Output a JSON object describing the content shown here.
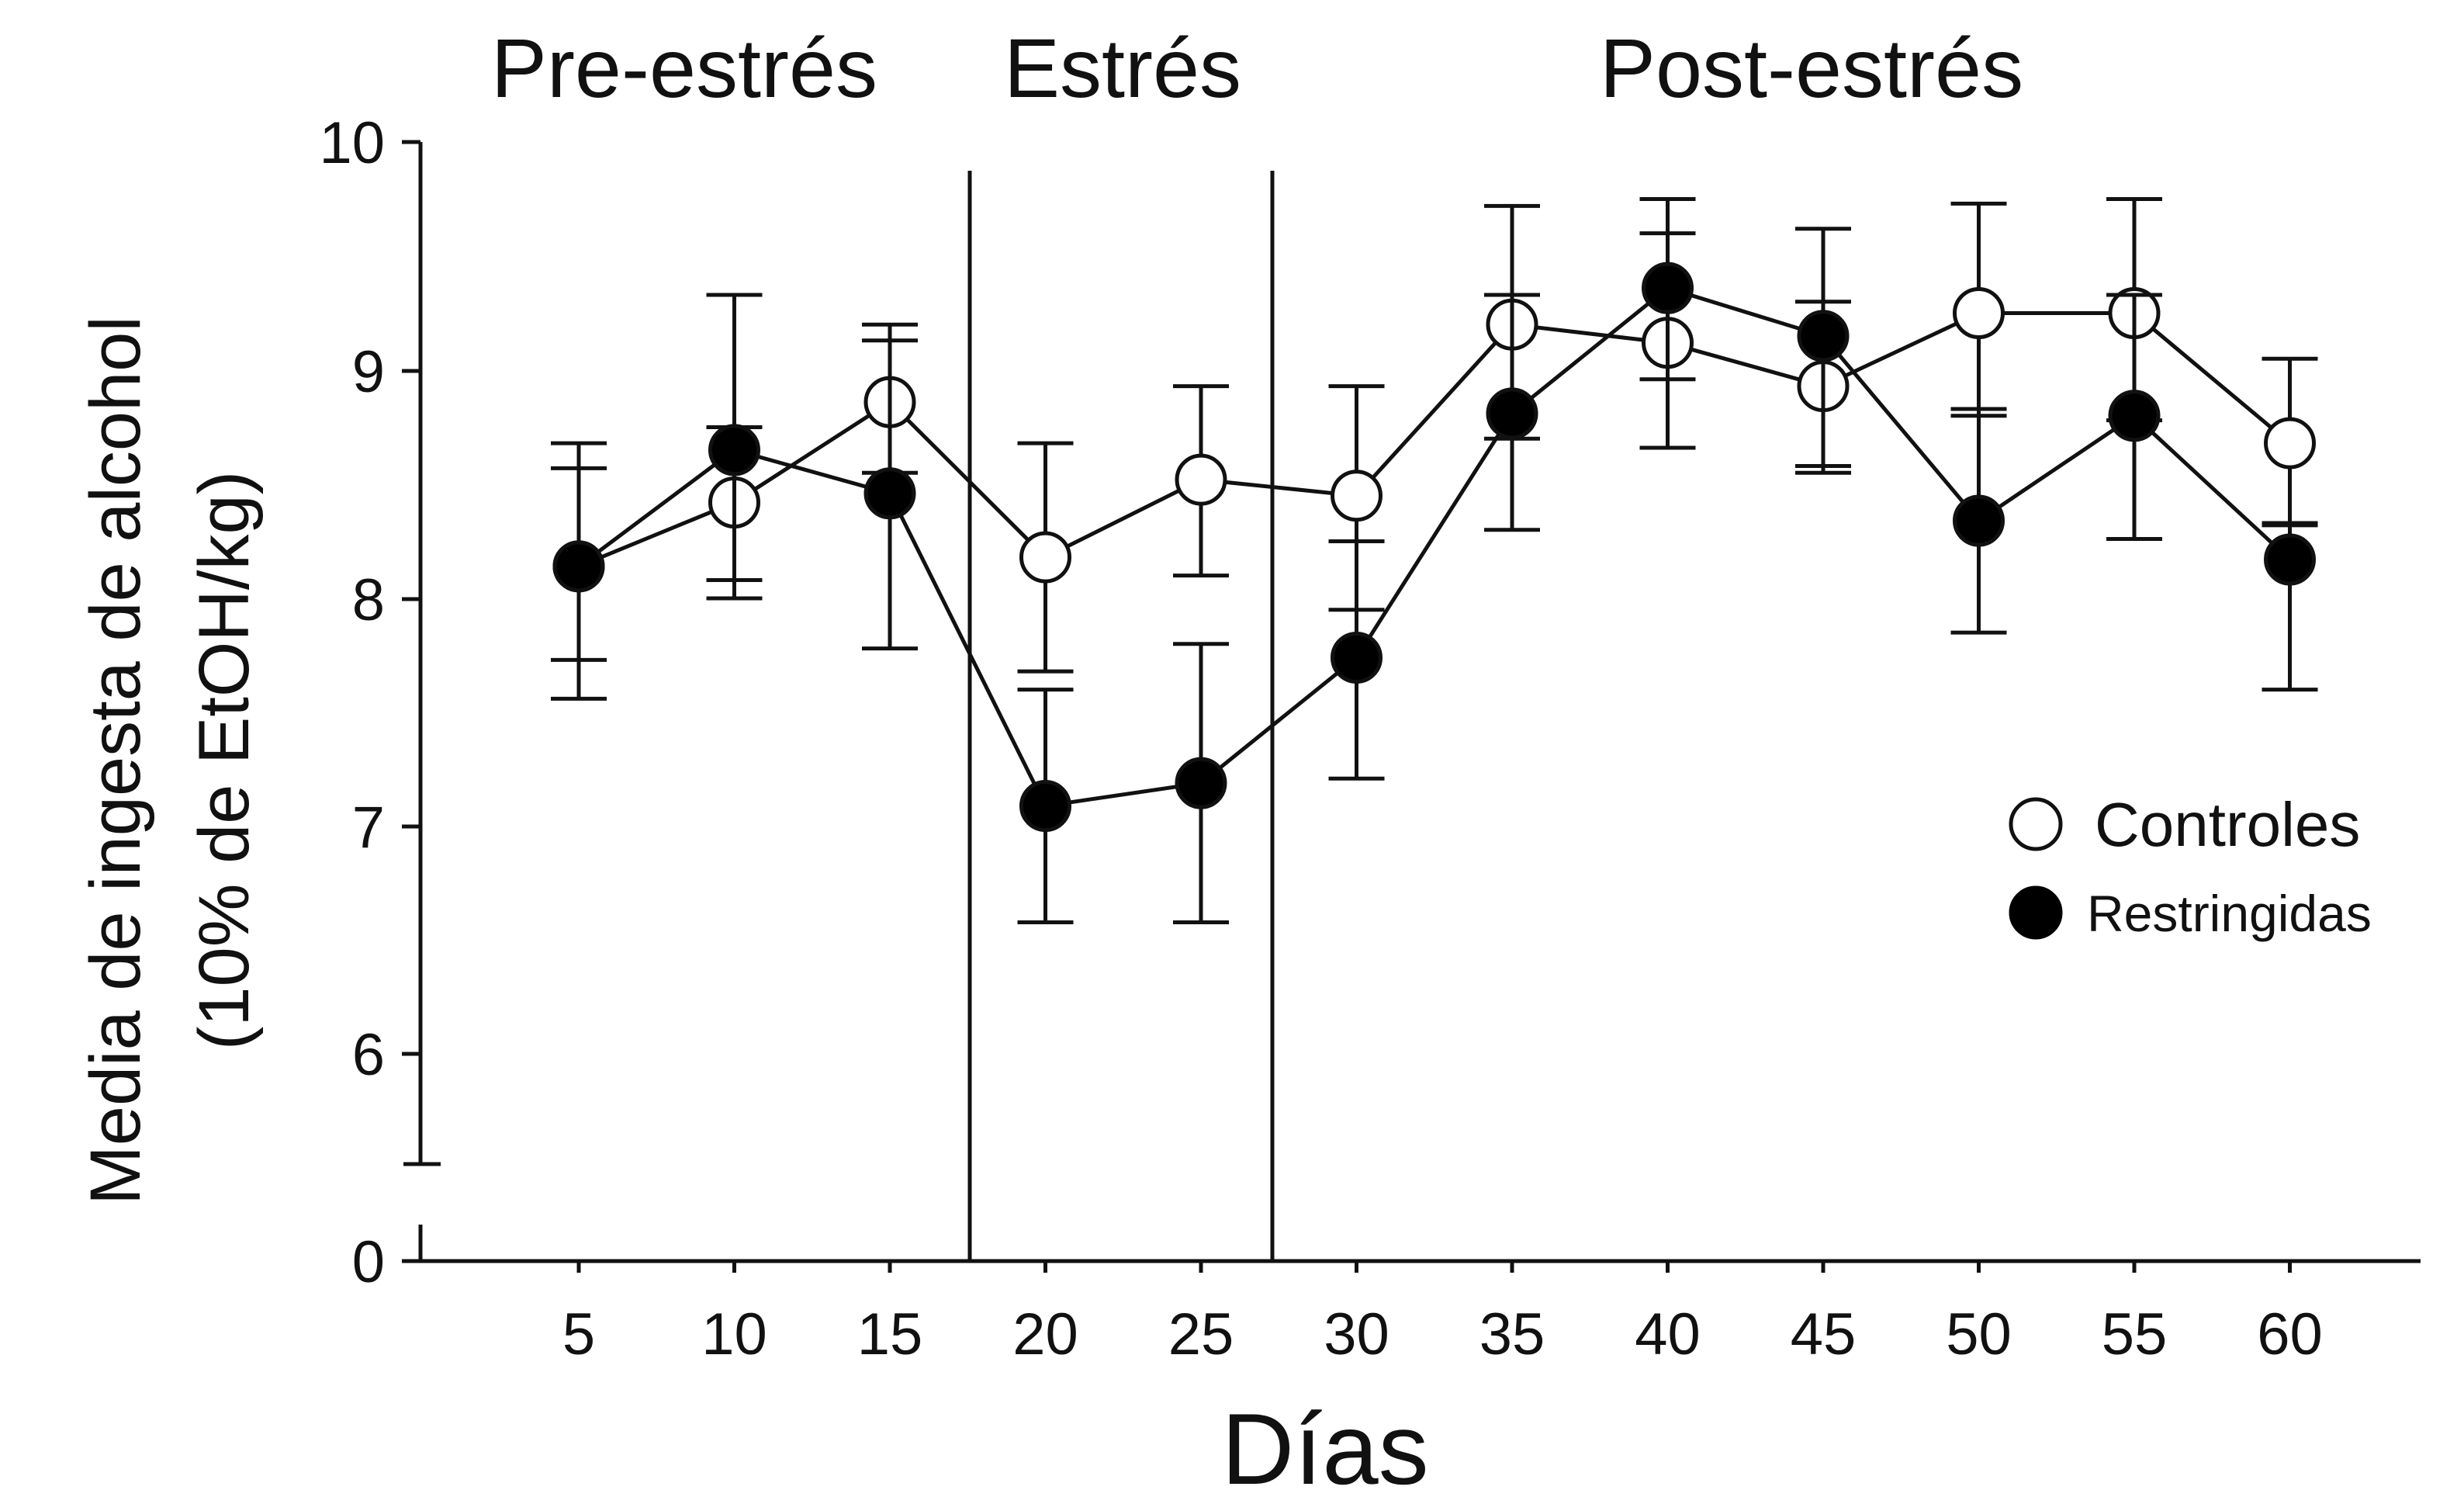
{
  "chart_data": {
    "type": "line",
    "phases": [
      "Pre-estrés",
      "Estrés",
      "Post-estrés"
    ],
    "phase_boundaries_x": [
      17.8,
      27.5
    ],
    "xlabel": "Días",
    "ylabel_lines": [
      "Media de ingesta de alcohol",
      "(10% de EtOH/kg)"
    ],
    "x": [
      5,
      10,
      15,
      20,
      25,
      30,
      35,
      40,
      45,
      50,
      55,
      60
    ],
    "x_tick_labels": [
      "5",
      "10",
      "15",
      "20",
      "25",
      "30",
      "35",
      "40",
      "45",
      "50",
      "55",
      "60"
    ],
    "y_tick_labels": [
      "0",
      "6",
      "7",
      "8",
      "9",
      "10"
    ],
    "y_axis_break": true,
    "ylim": [
      5.5,
      10
    ],
    "grid": false,
    "legend_position": "right",
    "series": [
      {
        "name": "Controles",
        "marker": "open-circle",
        "values": [
          8.14,
          8.42,
          8.86,
          8.18,
          8.52,
          8.45,
          9.2,
          9.12,
          8.93,
          9.25,
          9.25,
          8.68
        ],
        "err_hi": [
          8.68,
          8.75,
          9.2,
          8.68,
          8.93,
          8.93,
          9.72,
          9.6,
          9.3,
          9.73,
          9.75,
          9.05
        ],
        "err_lo": [
          7.73,
          8.08,
          8.55,
          7.68,
          8.1,
          7.95,
          8.7,
          8.96,
          8.58,
          8.8,
          8.78,
          8.32
        ]
      },
      {
        "name": "Restringidas",
        "marker": "filled-circle",
        "values": [
          8.14,
          8.65,
          8.46,
          7.09,
          7.19,
          7.74,
          8.81,
          9.36,
          9.15,
          8.34,
          8.8,
          8.17
        ],
        "err_hi": [
          8.57,
          9.33,
          9.13,
          7.6,
          7.8,
          8.25,
          9.33,
          9.75,
          9.62,
          8.83,
          9.33,
          8.33
        ],
        "err_lo": [
          7.56,
          8.0,
          7.78,
          6.58,
          6.58,
          7.21,
          8.3,
          8.66,
          8.55,
          7.85,
          8.26,
          7.6
        ]
      }
    ],
    "colors": {
      "ink": "#111111",
      "open_fill": "#ffffff",
      "filled": "#000000"
    }
  }
}
